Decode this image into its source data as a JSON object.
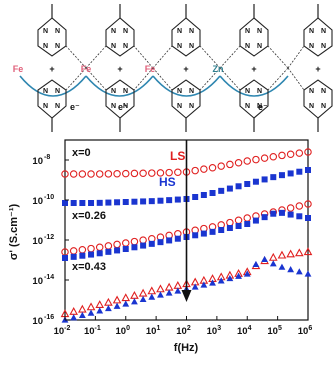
{
  "scheme": {
    "metal_labels": [
      "Fe",
      "Fe",
      "Fe",
      "Zn"
    ],
    "electron_labels": [
      "e⁻",
      "e⁻",
      "e⁻"
    ],
    "atom_labels": {
      "n": "N",
      "plus": "+"
    },
    "colors": {
      "iron": "#e0607a",
      "zinc": "#2f7f8f",
      "arc": "#2e86b0",
      "ligand": "#222222"
    }
  },
  "chart_data": {
    "type": "scatter",
    "title": "",
    "xlabel": "f(Hz)",
    "ylabel": "σ' (S.cm⁻¹)",
    "x_scale": "log",
    "y_scale": "log",
    "xlim": [
      0.01,
      1000000
    ],
    "ylim": [
      1e-16,
      1e-07
    ],
    "x_ticks": [
      {
        "value": 0.01,
        "label": "10",
        "exp": "-2"
      },
      {
        "value": 0.1,
        "label": "10",
        "exp": "-1"
      },
      {
        "value": 1,
        "label": "10",
        "exp": "0"
      },
      {
        "value": 10,
        "label": "10",
        "exp": "1"
      },
      {
        "value": 100,
        "label": "10",
        "exp": "2"
      },
      {
        "value": 1000,
        "label": "10",
        "exp": "3"
      },
      {
        "value": 10000,
        "label": "10",
        "exp": "4"
      },
      {
        "value": 100000,
        "label": "10",
        "exp": "5"
      },
      {
        "value": 1000000,
        "label": "10",
        "exp": "6"
      }
    ],
    "y_ticks": [
      {
        "value": 1e-16,
        "label": "10",
        "exp": "-16"
      },
      {
        "value": 1e-14,
        "label": "10",
        "exp": "-14"
      },
      {
        "value": 1e-12,
        "label": "10",
        "exp": "-12"
      },
      {
        "value": 1e-10,
        "label": "10",
        "exp": "-10"
      },
      {
        "value": 1e-08,
        "label": "10",
        "exp": "-8"
      }
    ],
    "legend": [
      {
        "label": "LS",
        "color": "#e02020",
        "marker": "open-circle"
      },
      {
        "label": "HS",
        "color": "#1a35d0",
        "marker": "filled-square"
      }
    ],
    "annotations": [
      "x=0",
      "x=0.26",
      "x=0.43"
    ],
    "arrow": {
      "x": 100,
      "from_y": 1e-07,
      "to_y": 1e-15
    },
    "series": [
      {
        "name": "LS",
        "group": "x=0",
        "marker": "open-circle",
        "color": "#e02020",
        "x": [
          0.01,
          0.1,
          1,
          10,
          100,
          1000,
          10000,
          100000,
          1000000
        ],
        "log_y": [
          -8.7,
          -8.7,
          -8.68,
          -8.65,
          -8.6,
          -8.35,
          -8.05,
          -7.8,
          -7.6
        ]
      },
      {
        "name": "HS",
        "group": "x=0",
        "marker": "filled-square",
        "color": "#1a35d0",
        "x": [
          0.01,
          0.1,
          1,
          10,
          100,
          1000,
          10000,
          100000,
          1000000
        ],
        "log_y": [
          -10.15,
          -10.15,
          -10.1,
          -10.05,
          -9.95,
          -9.6,
          -9.2,
          -8.8,
          -8.5
        ]
      },
      {
        "name": "LS",
        "group": "x=0.26",
        "marker": "open-circle",
        "color": "#e02020",
        "x": [
          0.01,
          0.1,
          1,
          10,
          100,
          1000,
          10000,
          100000,
          1000000
        ],
        "log_y": [
          -12.6,
          -12.4,
          -12.15,
          -11.9,
          -11.6,
          -11.3,
          -10.9,
          -10.55,
          -10.2
        ]
      },
      {
        "name": "HS",
        "group": "x=0.26",
        "marker": "filled-square",
        "color": "#1a35d0",
        "x": [
          0.01,
          0.1,
          1,
          10,
          100,
          1000,
          10000,
          100000,
          1000000
        ],
        "log_y": [
          -12.9,
          -12.7,
          -12.45,
          -12.15,
          -11.85,
          -11.55,
          -11.2,
          -10.6,
          -10.9
        ]
      },
      {
        "name": "LS",
        "group": "x=0.43",
        "marker": "open-triangle",
        "color": "#e02020",
        "x": [
          0.01,
          0.1,
          1,
          10,
          100,
          1000,
          10000,
          30000,
          100000,
          300000,
          1000000
        ],
        "log_y": [
          -15.7,
          -15.3,
          -14.9,
          -14.5,
          -14.2,
          -13.9,
          -13.6,
          -13.1,
          -12.8,
          -12.7,
          -12.6
        ]
      },
      {
        "name": "HS",
        "group": "x=0.43",
        "marker": "filled-triangle",
        "color": "#1a35d0",
        "x": [
          0.01,
          0.1,
          1,
          10,
          100,
          1000,
          10000,
          30000,
          100000,
          300000,
          1000000
        ],
        "log_y": [
          -16.0,
          -15.6,
          -15.2,
          -14.8,
          -14.45,
          -14.1,
          -13.7,
          -12.9,
          -13.3,
          -13.5,
          -13.7
        ]
      }
    ]
  }
}
